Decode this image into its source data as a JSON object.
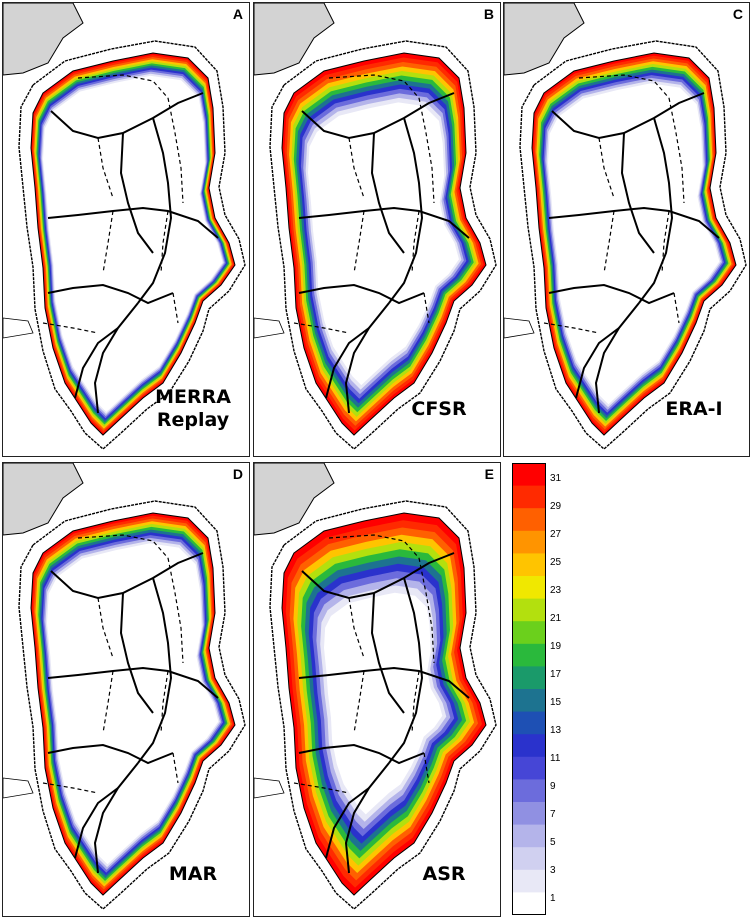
{
  "panels": [
    {
      "letter": "A",
      "label_lines": [
        "MERRA",
        "Replay"
      ],
      "melt_extent": 0.12
    },
    {
      "letter": "B",
      "label_lines": [
        "CFSR"
      ],
      "melt_extent": 0.26
    },
    {
      "letter": "C",
      "label_lines": [
        "ERA-I"
      ],
      "melt_extent": 0.16
    },
    {
      "letter": "D",
      "label_lines": [
        "MAR"
      ],
      "melt_extent": 0.16
    },
    {
      "letter": "E",
      "label_lines": [
        "ASR"
      ],
      "melt_extent": 0.42
    }
  ],
  "colorbar": {
    "ticks": [
      "31",
      "29",
      "27",
      "25",
      "23",
      "21",
      "19",
      "17",
      "15",
      "13",
      "11",
      "9",
      "7",
      "5",
      "3",
      "1"
    ],
    "colors": [
      "#ffffff",
      "#e8e8f6",
      "#d0d0f0",
      "#b4b4ea",
      "#9090e2",
      "#6c6cdc",
      "#4646d6",
      "#2a32cc",
      "#1e50b4",
      "#1d7390",
      "#1a9a6a",
      "#2ab93c",
      "#6bd01c",
      "#b3e00e",
      "#f0e800",
      "#ffc400",
      "#ff9400",
      "#ff6000",
      "#ff2a00",
      "#ff0000"
    ]
  }
}
